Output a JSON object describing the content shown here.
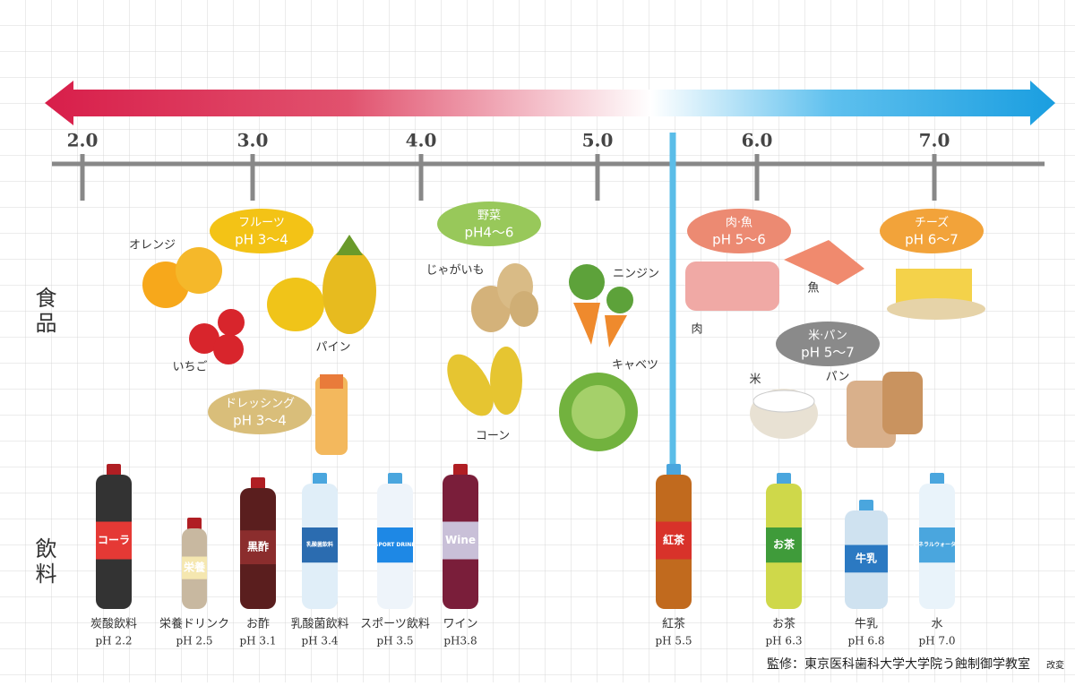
{
  "scale": {
    "ticks": [
      "2.0",
      "3.0",
      "4.0",
      "5.0",
      "6.0",
      "7.0"
    ]
  },
  "row_labels": {
    "food": "食品",
    "drink": "飲料"
  },
  "food_groups": [
    {
      "label": "フルーツ",
      "ph": "pH 3〜4"
    },
    {
      "label": "ドレッシング",
      "ph": "pH 3〜4"
    },
    {
      "label": "野菜",
      "ph": "pH4〜6"
    },
    {
      "label": "肉·魚",
      "ph": "pH 5〜6"
    },
    {
      "label": "チーズ",
      "ph": "pH 6〜7"
    },
    {
      "label": "米·パン",
      "ph": "pH 5〜7"
    }
  ],
  "food_items": [
    "オレンジ",
    "いちご",
    "パイン",
    "じゃがいも",
    "ニンジン",
    "コーン",
    "キャベツ",
    "肉",
    "魚",
    "米",
    "パン"
  ],
  "drinks": [
    {
      "name": "炭酸飲料",
      "ph": "pH 2.2",
      "bottle_text": "コーラ"
    },
    {
      "name": "栄養ドリンク",
      "ph": "pH 2.5",
      "bottle_text": "栄養"
    },
    {
      "name": "お酢",
      "ph": "pH 3.1",
      "bottle_text": "黒酢"
    },
    {
      "name": "乳酸菌飲料",
      "ph": "pH 3.4",
      "bottle_text": "乳酸菌飲料"
    },
    {
      "name": "スポーツ飲料",
      "ph": "pH 3.5",
      "bottle_text": "SPORT DRINK"
    },
    {
      "name": "ワイン",
      "ph": "pH3.8",
      "bottle_text": "Wine"
    },
    {
      "name": "紅茶",
      "ph": "pH 5.5",
      "bottle_text": "紅茶"
    },
    {
      "name": "お茶",
      "ph": "pH 6.3",
      "bottle_text": "お茶"
    },
    {
      "name": "牛乳",
      "ph": "pH 6.8",
      "bottle_text": "牛乳"
    },
    {
      "name": "水",
      "ph": "pH 7.0",
      "bottle_text": "ミネラルウォーター"
    }
  ],
  "credit": "監修：東京医科歯科大学大学院う蝕制御学教室",
  "note": "改変"
}
